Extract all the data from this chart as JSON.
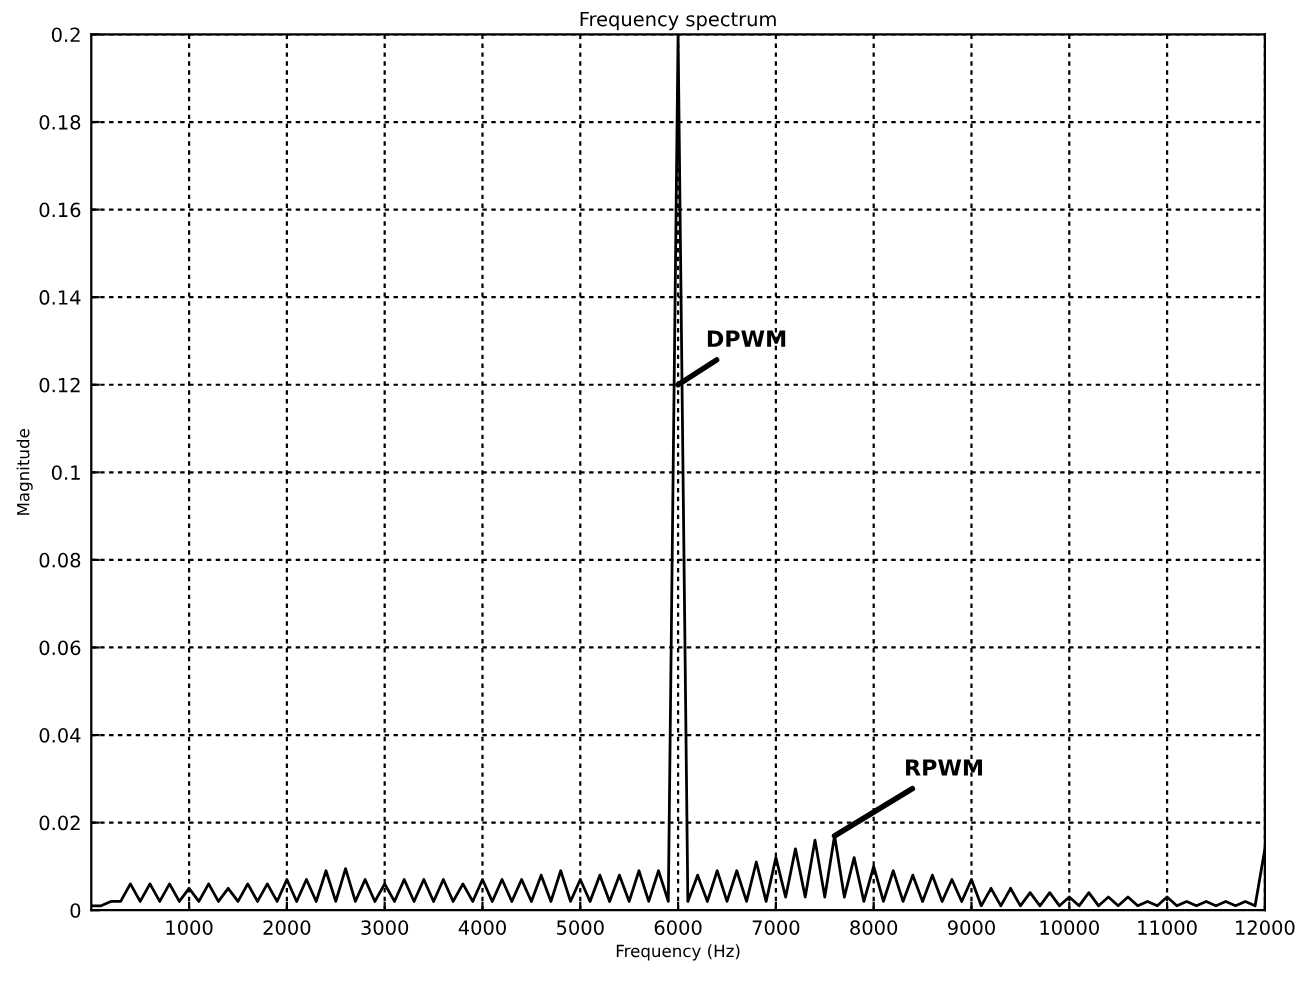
{
  "chart_data": {
    "type": "line",
    "title": "Frequency spectrum",
    "xlabel": "Frequency (Hz)",
    "ylabel": "Magnitude",
    "series": [
      {
        "color": "#000000",
        "x": [
          0,
          100,
          200,
          300,
          400,
          500,
          600,
          700,
          800,
          900,
          1000,
          1100,
          1200,
          1300,
          1400,
          1500,
          1600,
          1700,
          1800,
          1900,
          2000,
          2100,
          2200,
          2300,
          2400,
          2500,
          2600,
          2700,
          2800,
          2900,
          3000,
          3100,
          3200,
          3300,
          3400,
          3500,
          3600,
          3700,
          3800,
          3900,
          4000,
          4100,
          4200,
          4300,
          4400,
          4500,
          4600,
          4700,
          4800,
          4900,
          5000,
          5100,
          5200,
          5300,
          5400,
          5500,
          5600,
          5700,
          5800,
          5900,
          6000,
          6100,
          6200,
          6300,
          6400,
          6500,
          6600,
          6700,
          6800,
          6900,
          7000,
          7100,
          7200,
          7300,
          7400,
          7500,
          7600,
          7700,
          7800,
          7900,
          8000,
          8100,
          8200,
          8300,
          8400,
          8500,
          8600,
          8700,
          8800,
          8900,
          9000,
          9100,
          9200,
          9300,
          9400,
          9500,
          9600,
          9700,
          9800,
          9900,
          10000,
          10100,
          10200,
          10300,
          10400,
          10500,
          10600,
          10700,
          10800,
          10900,
          11000,
          11100,
          11200,
          11300,
          11400,
          11500,
          11600,
          11700,
          11800,
          11900,
          12000
        ],
        "values": [
          0.001,
          0.001,
          0.002,
          0.002,
          0.006,
          0.002,
          0.006,
          0.002,
          0.006,
          0.002,
          0.005,
          0.002,
          0.006,
          0.002,
          0.005,
          0.002,
          0.006,
          0.002,
          0.006,
          0.002,
          0.007,
          0.002,
          0.007,
          0.002,
          0.009,
          0.002,
          0.0095,
          0.002,
          0.007,
          0.002,
          0.006,
          0.002,
          0.007,
          0.002,
          0.007,
          0.002,
          0.007,
          0.002,
          0.006,
          0.002,
          0.007,
          0.002,
          0.007,
          0.002,
          0.007,
          0.002,
          0.008,
          0.002,
          0.009,
          0.002,
          0.007,
          0.002,
          0.008,
          0.002,
          0.008,
          0.002,
          0.009,
          0.002,
          0.009,
          0.002,
          0.2,
          0.002,
          0.008,
          0.002,
          0.009,
          0.002,
          0.009,
          0.002,
          0.011,
          0.002,
          0.012,
          0.003,
          0.014,
          0.003,
          0.016,
          0.003,
          0.017,
          0.003,
          0.012,
          0.002,
          0.01,
          0.002,
          0.009,
          0.002,
          0.008,
          0.002,
          0.008,
          0.002,
          0.007,
          0.002,
          0.007,
          0.001,
          0.005,
          0.001,
          0.005,
          0.001,
          0.004,
          0.001,
          0.004,
          0.001,
          0.003,
          0.001,
          0.004,
          0.001,
          0.003,
          0.001,
          0.003,
          0.001,
          0.002,
          0.001,
          0.003,
          0.001,
          0.002,
          0.001,
          0.002,
          0.001,
          0.002,
          0.001,
          0.002,
          0.001,
          0.014
        ]
      }
    ],
    "xlim": [
      0,
      12000
    ],
    "xticks": [
      1000,
      2000,
      3000,
      4000,
      5000,
      6000,
      7000,
      8000,
      9000,
      10000,
      11000,
      12000
    ],
    "ylim": [
      0,
      0.2
    ],
    "yticks": [
      0,
      0.02,
      0.04,
      0.06,
      0.08,
      0.1,
      0.12,
      0.14,
      0.16,
      0.18,
      0.2
    ],
    "grid": true,
    "legend": false,
    "annotations": [
      {
        "text": "DPWM",
        "x": 6000,
        "y": 0.12
      },
      {
        "text": "RPWM",
        "x": 7600,
        "y": 0.017
      }
    ]
  }
}
